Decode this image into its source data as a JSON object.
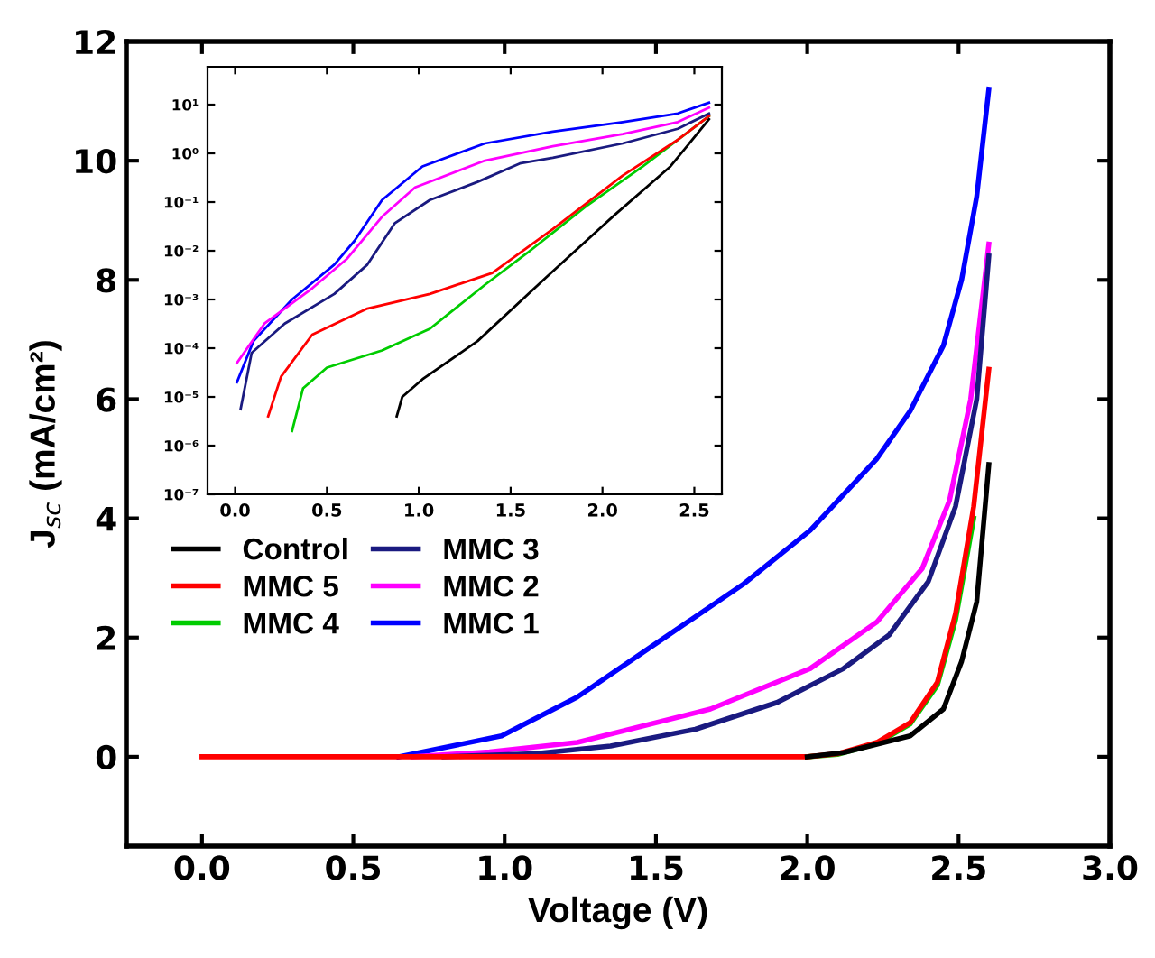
{
  "chart_data": [
    {
      "type": "line",
      "xlabel": "Voltage (V)",
      "ylabel": "J$_{sc}$ (mA/cm²)",
      "xlim": [
        -0.25,
        3.0
      ],
      "ylim": [
        -1.5,
        12
      ],
      "xticks": [
        {
          "value": 0,
          "label": "0.0"
        },
        {
          "value": 0.5,
          "label": "0.5"
        },
        {
          "value": 1,
          "label": "1.0"
        },
        {
          "value": 1.5,
          "label": "1.5"
        },
        {
          "value": 2,
          "label": "2.0"
        },
        {
          "value": 2.5,
          "label": "2.5"
        },
        {
          "value": 3,
          "label": "3.0"
        }
      ],
      "yticks": [
        0,
        2,
        4,
        6,
        8,
        10,
        12
      ],
      "grid": false,
      "legend": "center left",
      "marker": "none",
      "line_style": "solid",
      "series": [
        {
          "name": "Control",
          "color": "#000000",
          "x": [
            2.0,
            2.12,
            2.34,
            2.45,
            2.51,
            2.56,
            2.6
          ],
          "values": [
            0,
            0.07,
            0.35,
            0.8,
            1.6,
            2.6,
            4.9
          ]
        },
        {
          "name": "MMC 5",
          "color": "#ff0000",
          "x": [
            0,
            1.0,
            2.0,
            2.1,
            2.23,
            2.34,
            2.43,
            2.49,
            2.55,
            2.6
          ],
          "values": [
            0,
            0,
            0,
            0.05,
            0.24,
            0.57,
            1.25,
            2.4,
            4.2,
            6.5
          ]
        },
        {
          "name": "MMC 4",
          "color": "#00cc00",
          "x": [
            2.0,
            2.1,
            2.23,
            2.34,
            2.43,
            2.49,
            2.55
          ],
          "values": [
            0,
            0.04,
            0.22,
            0.55,
            1.2,
            2.3,
            4.0
          ]
        },
        {
          "name": "MMC 3",
          "color": "#1a1a80",
          "x": [
            0.8,
            1.1,
            1.35,
            1.63,
            1.9,
            2.12,
            2.27,
            2.4,
            2.49,
            2.56,
            2.6
          ],
          "values": [
            0,
            0.05,
            0.18,
            0.46,
            0.91,
            1.48,
            2.04,
            2.94,
            4.2,
            6.0,
            8.4
          ]
        },
        {
          "name": "MMC 2",
          "color": "#ff00ff",
          "x": [
            0.7,
            0.95,
            1.24,
            1.68,
            2.01,
            2.23,
            2.38,
            2.47,
            2.54,
            2.6
          ],
          "values": [
            0,
            0.08,
            0.24,
            0.8,
            1.48,
            2.26,
            3.16,
            4.3,
            6.0,
            8.6
          ]
        },
        {
          "name": "MMC 1",
          "color": "#0000ff",
          "x": [
            0.65,
            0.99,
            1.24,
            1.5,
            1.79,
            2.01,
            2.23,
            2.34,
            2.45,
            2.51,
            2.56,
            2.6
          ],
          "values": [
            0,
            0.35,
            1.0,
            1.9,
            2.9,
            3.8,
            5.0,
            5.8,
            6.9,
            8.0,
            9.4,
            11.2
          ]
        }
      ]
    },
    {
      "type": "line",
      "log": "y",
      "xlim": [
        -0.15,
        2.65
      ],
      "ylim": [
        1e-07,
        60
      ],
      "xticks": [
        {
          "value": 0,
          "label": "0.0"
        },
        {
          "value": 0.5,
          "label": "0.5"
        },
        {
          "value": 1,
          "label": "1.0"
        },
        {
          "value": 1.5,
          "label": "1.5"
        },
        {
          "value": 2,
          "label": "2.0"
        },
        {
          "value": 2.5,
          "label": "2.5"
        }
      ],
      "yticks": [
        {
          "value": 1e-07,
          "label": "10⁻⁷"
        },
        {
          "value": 1e-06,
          "label": "10⁻⁶"
        },
        {
          "value": 1e-05,
          "label": "10⁻⁵"
        },
        {
          "value": 0.0001,
          "label": "10⁻⁴"
        },
        {
          "value": 0.001,
          "label": "10⁻³"
        },
        {
          "value": 0.01,
          "label": "10⁻²"
        },
        {
          "value": 0.1,
          "label": "10⁻¹"
        },
        {
          "value": 1,
          "label": "10⁰"
        },
        {
          "value": 10,
          "label": "10¹"
        }
      ],
      "grid": false,
      "marker": "none",
      "line_style": "solid",
      "series": [
        {
          "color": "#000000",
          "x": [
            0.88,
            0.91,
            1.02,
            1.32,
            1.7,
            2.07,
            2.37,
            2.58
          ],
          "values": [
            4e-06,
            1e-05,
            2.3e-05,
            0.00014,
            0.003,
            0.056,
            0.54,
            5
          ]
        },
        {
          "color": "#ff0000",
          "x": [
            0.18,
            0.25,
            0.42,
            0.72,
            1.06,
            1.4,
            1.73,
            2.11,
            2.41,
            2.58
          ],
          "values": [
            4e-06,
            2.6e-05,
            0.00019,
            0.00065,
            0.0013,
            0.0035,
            0.028,
            0.35,
            1.9,
            5.8
          ]
        },
        {
          "color": "#00cc00",
          "x": [
            0.31,
            0.37,
            0.5,
            0.8,
            1.06,
            1.36,
            1.59,
            1.92,
            2.22,
            2.58
          ],
          "values": [
            2e-06,
            1.5e-05,
            4e-05,
            9e-05,
            0.00025,
            0.002,
            0.009,
            0.087,
            0.54,
            5.8
          ]
        },
        {
          "color": "#1a1a80",
          "x": [
            0.03,
            0.09,
            0.27,
            0.54,
            0.72,
            0.87,
            1.06,
            1.32,
            1.55,
            1.73,
            2.11,
            2.41,
            2.58
          ],
          "values": [
            5.6e-06,
            8e-05,
            0.00032,
            0.0013,
            0.0052,
            0.037,
            0.11,
            0.26,
            0.62,
            0.81,
            1.6,
            3.2,
            6.6
          ]
        },
        {
          "color": "#ff00ff",
          "x": [
            0.01,
            0.16,
            0.42,
            0.61,
            0.8,
            0.98,
            1.36,
            1.73,
            2.11,
            2.41,
            2.58
          ],
          "values": [
            5e-05,
            0.00032,
            0.0017,
            0.0069,
            0.05,
            0.2,
            0.71,
            1.4,
            2.5,
            4.4,
            8.7
          ]
        },
        {
          "color": "#0000ff",
          "x": [
            0.01,
            0.1,
            0.31,
            0.54,
            0.65,
            0.8,
            1.02,
            1.36,
            1.73,
            2.11,
            2.41,
            2.58
          ],
          "values": [
            2e-05,
            0.00014,
            0.001,
            0.0052,
            0.016,
            0.11,
            0.54,
            1.6,
            2.8,
            4.4,
            6.6,
            11
          ]
        }
      ]
    }
  ]
}
